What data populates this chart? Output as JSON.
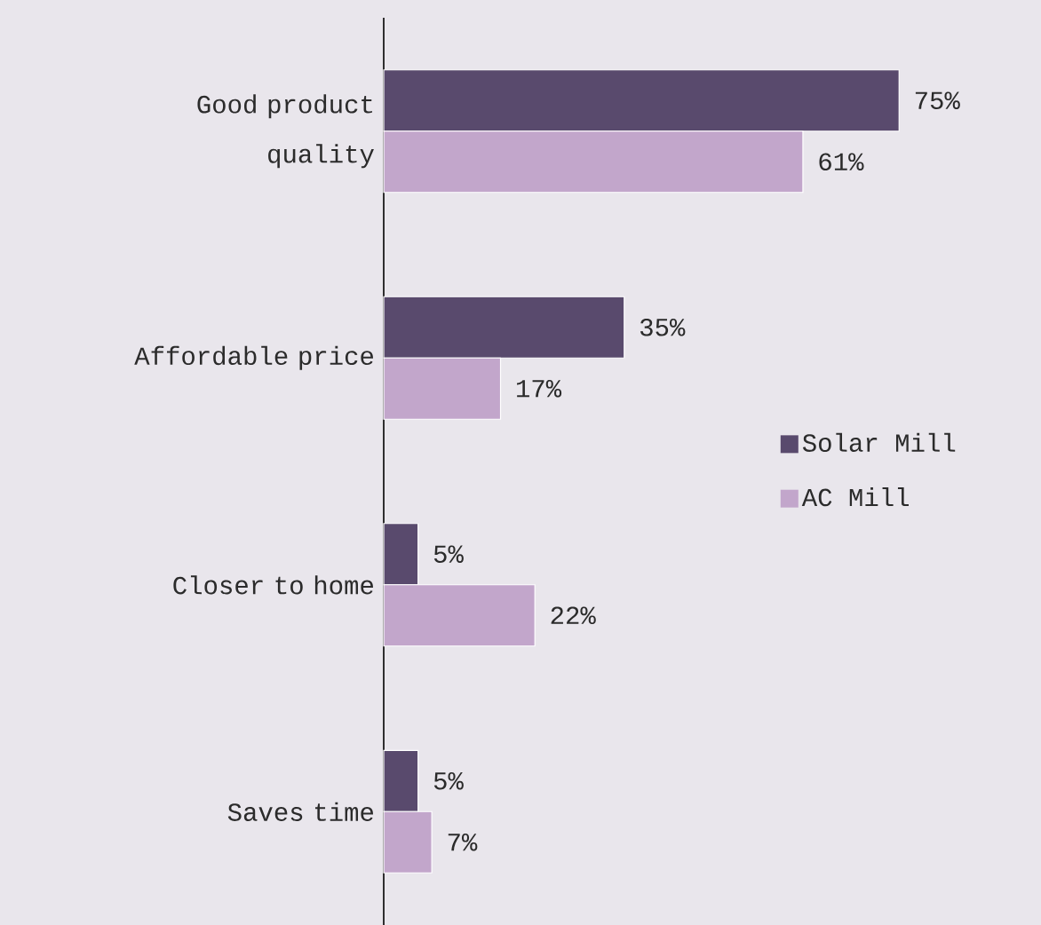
{
  "chart_data": {
    "type": "bar",
    "orientation": "horizontal",
    "legend": "right",
    "categories": [
      "Good product quality",
      "Affordable price",
      "Closer to home",
      "Saves time"
    ],
    "series": [
      {
        "name": "Solar Mill",
        "color": "#594a6d",
        "values": [
          75,
          35,
          5,
          5
        ],
        "value_labels": [
          "75%",
          "35%",
          "5%",
          "5%"
        ]
      },
      {
        "name": "AC Mill",
        "color": "#c2a6cb",
        "values": [
          61,
          17,
          22,
          7
        ],
        "value_labels": [
          "61%",
          "17%",
          "22%",
          "7%"
        ]
      }
    ]
  }
}
